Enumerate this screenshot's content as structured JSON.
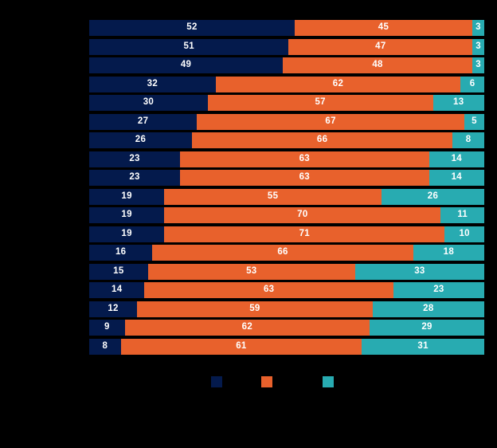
{
  "background": "#000000",
  "colors": {
    "navy": "#041A4C",
    "orange": "#E8612C",
    "teal": "#28ABB1",
    "value_text": "#FFFFFF"
  },
  "chart_data": {
    "type": "bar",
    "orientation": "horizontal",
    "stacked": true,
    "normalized_to_100": true,
    "row_count": 18,
    "xlim": [
      0,
      100
    ],
    "grid": false,
    "category_labels_visible": false,
    "series": [
      {
        "name": "navy",
        "color": "#041A4C",
        "values": [
          52,
          51,
          49,
          32,
          30,
          27,
          26,
          23,
          23,
          19,
          19,
          19,
          16,
          15,
          14,
          12,
          9,
          8
        ]
      },
      {
        "name": "orange",
        "color": "#E8612C",
        "values": [
          45,
          47,
          48,
          62,
          57,
          67,
          66,
          63,
          63,
          55,
          70,
          71,
          66,
          53,
          63,
          59,
          62,
          61
        ]
      },
      {
        "name": "teal",
        "color": "#28ABB1",
        "values": [
          3,
          3,
          3,
          6,
          13,
          5,
          8,
          14,
          14,
          26,
          11,
          10,
          18,
          33,
          23,
          28,
          29,
          31
        ]
      }
    ],
    "legend": {
      "position": "bottom",
      "swatches": [
        {
          "name": "navy",
          "color": "#041A4C",
          "label": ""
        },
        {
          "name": "orange",
          "color": "#E8612C",
          "label": ""
        },
        {
          "name": "teal",
          "color": "#28ABB1",
          "label": ""
        }
      ]
    }
  }
}
